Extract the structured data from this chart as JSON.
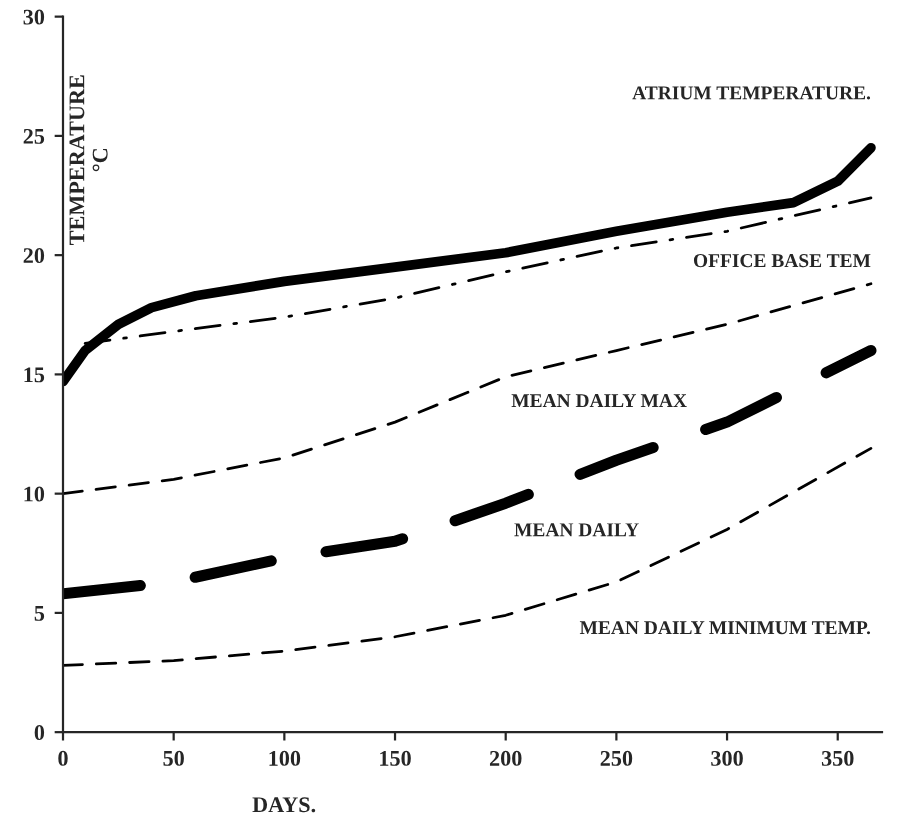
{
  "chart_data": {
    "type": "line",
    "xlabel": "DAYS.",
    "ylabel": "TEMPERATURE\n°C",
    "x": [
      0,
      50,
      100,
      150,
      200,
      250,
      300,
      365
    ],
    "series": [
      {
        "name": "ATRIUM TEMPERATURE.",
        "color": "#000000",
        "line_style": "solid",
        "x": [
          0,
          10,
          25,
          40,
          60,
          100,
          150,
          200,
          250,
          300,
          330,
          350,
          365
        ],
        "values": [
          14.7,
          16,
          17.1,
          17.8,
          18.3,
          18.9,
          19.5,
          20.1,
          21,
          21.8,
          22.2,
          23.1,
          24.5
        ]
      },
      {
        "name": "OFFICE BASE TEM",
        "color": "#000000",
        "line_style": "dashdot",
        "x": [
          10,
          50,
          100,
          150,
          200,
          250,
          300,
          365
        ],
        "values": [
          16.3,
          16.8,
          17.4,
          18.2,
          19.3,
          20.3,
          21,
          22.4
        ]
      },
      {
        "name": "MEAN DAILY MAX",
        "color": "#000000",
        "line_style": "dashed",
        "values": [
          10,
          10.6,
          11.5,
          13,
          14.9,
          16,
          17.1,
          18.8
        ]
      },
      {
        "name": "MEAN DAILY",
        "color": "#000000",
        "line_style": "dashed",
        "values": [
          5.8,
          6.3,
          7.3,
          8,
          9.6,
          11.4,
          13,
          16
        ]
      },
      {
        "name": "MEAN DAILY MINIMUM TEMP.",
        "color": "#000000",
        "line_style": "dashed",
        "values": [
          2.8,
          3,
          3.4,
          4,
          4.9,
          6.3,
          8.5,
          11.9
        ]
      }
    ],
    "xlim": [
      0,
      370
    ],
    "ylim": [
      0,
      30
    ],
    "xticks": [
      0,
      50,
      100,
      150,
      200,
      250,
      300,
      350
    ],
    "yticks": [
      0,
      5,
      10,
      15,
      20,
      25,
      30
    ],
    "grid": false,
    "legend": false,
    "marker": "none"
  }
}
